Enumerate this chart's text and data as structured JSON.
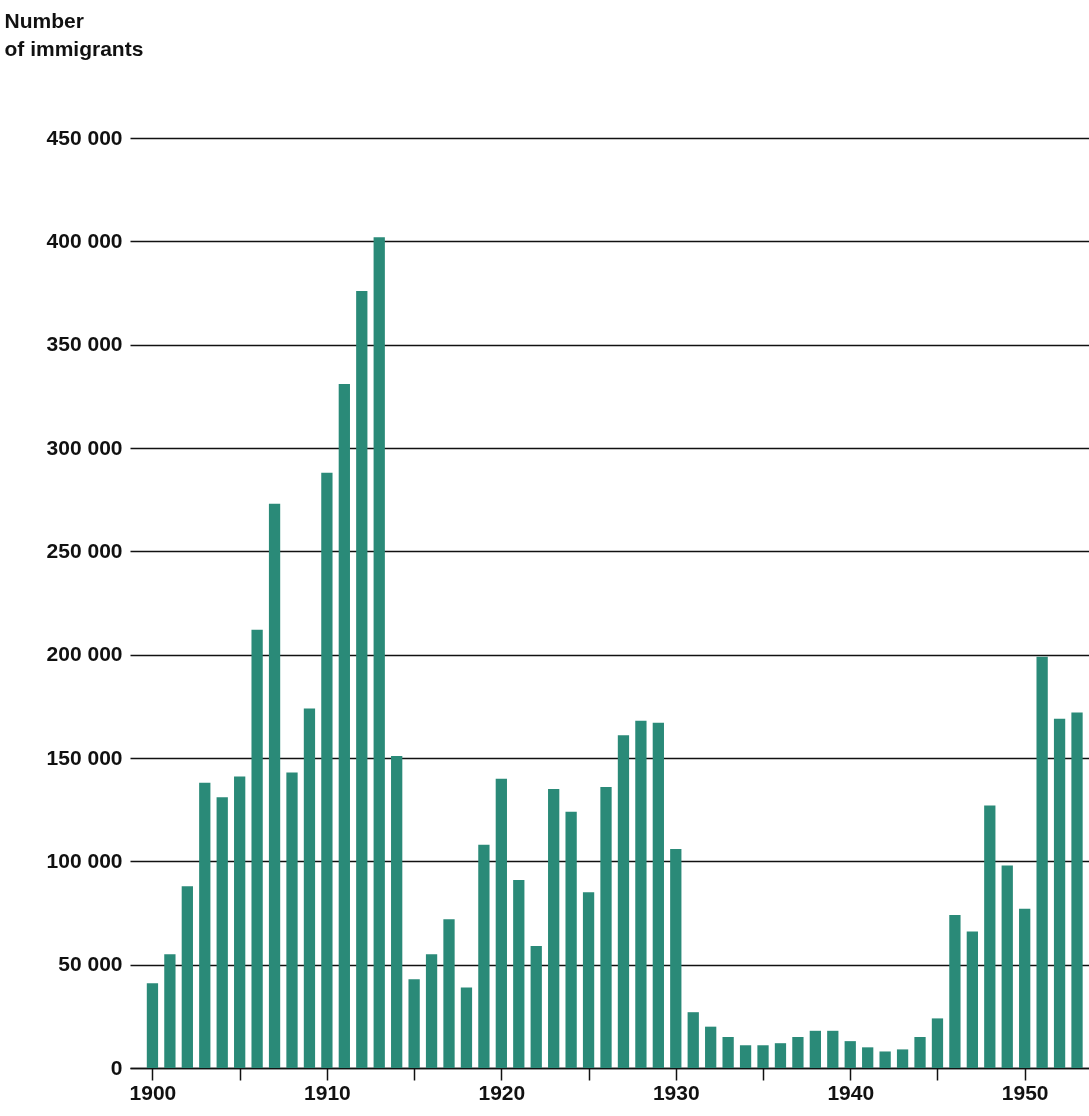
{
  "chart_data": {
    "type": "bar",
    "ylabel": "Number of immigrants",
    "x": [
      1900,
      1901,
      1902,
      1903,
      1904,
      1905,
      1906,
      1907,
      1908,
      1909,
      1910,
      1911,
      1912,
      1913,
      1914,
      1915,
      1916,
      1917,
      1918,
      1919,
      1920,
      1921,
      1922,
      1923,
      1924,
      1925,
      1926,
      1927,
      1928,
      1929,
      1930,
      1931,
      1932,
      1933,
      1934,
      1935,
      1936,
      1937,
      1938,
      1939,
      1940,
      1941,
      1942,
      1943,
      1944,
      1945,
      1946,
      1947,
      1948,
      1949,
      1950,
      1951,
      1952,
      1953
    ],
    "values": [
      41000,
      55000,
      88000,
      138000,
      131000,
      141000,
      212000,
      273000,
      143000,
      174000,
      288000,
      331000,
      376000,
      402000,
      151000,
      43000,
      55000,
      72000,
      39000,
      108000,
      140000,
      91000,
      59000,
      135000,
      124000,
      85000,
      136000,
      161000,
      168000,
      167000,
      106000,
      27000,
      20000,
      15000,
      11000,
      11000,
      12000,
      15000,
      18000,
      18000,
      13000,
      10000,
      8000,
      9000,
      15000,
      24000,
      74000,
      66000,
      127000,
      98000,
      77000,
      199000,
      169000,
      172000
    ],
    "color": "#2a8a78",
    "xlim": [
      1899,
      1953.4
    ],
    "xticks": [
      1900,
      {
        "value": 1905,
        "label": null
      },
      1910,
      {
        "value": 1915,
        "label": null
      },
      1920,
      {
        "value": 1925,
        "label": null
      },
      1930,
      {
        "value": 1935,
        "label": null
      },
      1940,
      {
        "value": 1945,
        "label": null
      },
      1950
    ],
    "ylim": [
      0,
      450000
    ],
    "yticks": [
      {
        "value": 0,
        "label": "0"
      },
      {
        "value": 50000,
        "label": "50 000"
      },
      {
        "value": 100000,
        "label": "100 000"
      },
      {
        "value": 150000,
        "label": "150 000"
      },
      {
        "value": 200000,
        "label": "200 000"
      },
      {
        "value": 250000,
        "label": "250 000"
      },
      {
        "value": 300000,
        "label": "300 000"
      },
      {
        "value": 350000,
        "label": "350 000"
      },
      {
        "value": 400000,
        "label": "400 000"
      },
      {
        "value": 450000,
        "label": "450 000"
      }
    ],
    "grid": "y"
  }
}
